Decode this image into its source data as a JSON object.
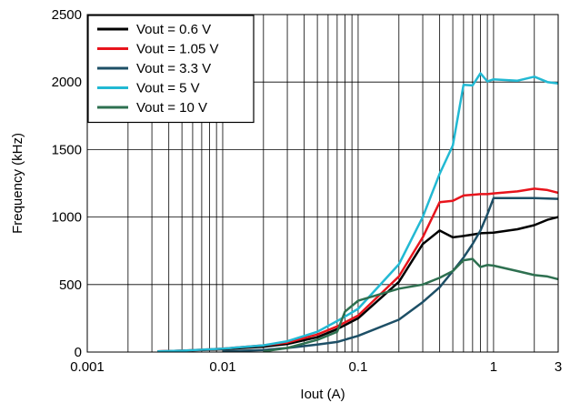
{
  "chart_data": {
    "type": "line",
    "title": "",
    "xlabel": "Iout (A)",
    "ylabel": "Frequency (kHz)",
    "xscale": "log",
    "xlim": [
      0.001,
      3
    ],
    "ylim": [
      0,
      2500
    ],
    "xticks": [
      {
        "value": 0.001,
        "label": "0.001"
      },
      {
        "value": 0.01,
        "label": "0.01"
      },
      {
        "value": 0.1,
        "label": "0.1"
      },
      {
        "value": 1,
        "label": "1"
      },
      {
        "value": 3,
        "label": "3"
      }
    ],
    "yticks": [
      {
        "value": 0,
        "label": "0"
      },
      {
        "value": 500,
        "label": "500"
      },
      {
        "value": 1000,
        "label": "1000"
      },
      {
        "value": 1500,
        "label": "1500"
      },
      {
        "value": 2000,
        "label": "2000"
      },
      {
        "value": 2500,
        "label": "2500"
      }
    ],
    "grid": true,
    "legend_position": "top-left",
    "series": [
      {
        "name": "Vout = 0.6 V",
        "color": "#000000",
        "x": [
          0.0033,
          0.005,
          0.01,
          0.02,
          0.03,
          0.05,
          0.07,
          0.1,
          0.2,
          0.3,
          0.4,
          0.5,
          0.6,
          0.7,
          0.8,
          1.0,
          1.5,
          2.0,
          2.5,
          3.0
        ],
        "y": [
          5,
          10,
          20,
          40,
          60,
          110,
          170,
          250,
          520,
          800,
          900,
          850,
          860,
          870,
          880,
          885,
          910,
          940,
          980,
          1000
        ]
      },
      {
        "name": "Vout = 1.05 V",
        "color": "#e8141c",
        "x": [
          0.0033,
          0.005,
          0.01,
          0.02,
          0.03,
          0.05,
          0.07,
          0.1,
          0.2,
          0.3,
          0.4,
          0.5,
          0.6,
          0.7,
          0.8,
          0.9,
          1.0,
          1.5,
          2.0,
          2.5,
          3.0
        ],
        "y": [
          5,
          10,
          25,
          50,
          70,
          130,
          190,
          270,
          560,
          850,
          1110,
          1120,
          1160,
          1165,
          1170,
          1170,
          1175,
          1190,
          1210,
          1200,
          1180
        ]
      },
      {
        "name": "Vout = 3.3 V",
        "color": "#1d4f66",
        "x": [
          0.01,
          0.02,
          0.03,
          0.05,
          0.07,
          0.1,
          0.2,
          0.3,
          0.4,
          0.5,
          0.6,
          0.7,
          0.8,
          0.9,
          1.0,
          1.5,
          2.0,
          3.0
        ],
        "y": [
          5,
          15,
          30,
          55,
          75,
          120,
          240,
          370,
          480,
          600,
          700,
          800,
          900,
          1020,
          1140,
          1140,
          1140,
          1135
        ]
      },
      {
        "name": "Vout = 5 V",
        "color": "#22b9d3",
        "x": [
          0.0033,
          0.005,
          0.01,
          0.02,
          0.03,
          0.05,
          0.07,
          0.1,
          0.2,
          0.3,
          0.4,
          0.5,
          0.6,
          0.7,
          0.8,
          0.9,
          1.0,
          1.5,
          2.0,
          2.5,
          3.0
        ],
        "y": [
          5,
          10,
          25,
          50,
          80,
          150,
          230,
          320,
          650,
          1000,
          1320,
          1530,
          1980,
          1975,
          2065,
          2005,
          2020,
          2010,
          2040,
          2000,
          1990
        ]
      },
      {
        "name": "Vout = 10 V",
        "color": "#2e7050",
        "x": [
          0.02,
          0.03,
          0.05,
          0.07,
          0.08,
          0.1,
          0.2,
          0.3,
          0.4,
          0.5,
          0.6,
          0.7,
          0.8,
          0.9,
          1.0,
          1.5,
          2.0,
          2.5,
          3.0
        ],
        "y": [
          5,
          30,
          90,
          150,
          300,
          380,
          470,
          500,
          550,
          600,
          680,
          690,
          630,
          645,
          640,
          600,
          570,
          560,
          540
        ]
      }
    ]
  }
}
